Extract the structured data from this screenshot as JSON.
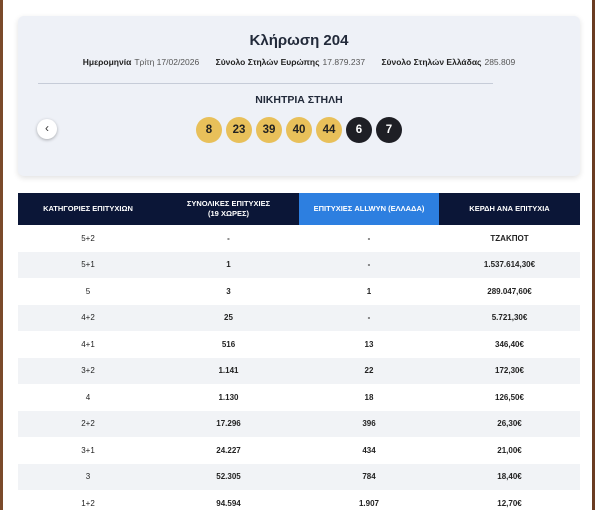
{
  "draw": {
    "title": "Κλήρωση 204",
    "date_label": "Ημερομηνία",
    "date_value": "Τρίτη 17/02/2026",
    "europe_label": "Σύνολο Στηλών Ευρώπης",
    "europe_value": "17.879.237",
    "greece_label": "Σύνολο Στηλών Ελλάδας",
    "greece_value": "285.809",
    "winning_label": "ΝΙΚΗΤΡΙΑ ΣΤΗΛΗ",
    "numbers": [
      "8",
      "23",
      "39",
      "40",
      "44"
    ],
    "stars": [
      "6",
      "7"
    ],
    "prev_icon": "chevron-left-icon",
    "colors": {
      "ball": "#e8c05a",
      "star": "#1e1f25",
      "header": "#0b1637",
      "header_highlight": "#2d7fe0"
    }
  },
  "table": {
    "headers": {
      "category": "ΚΑΤΗΓΟΡΙΕΣ ΕΠΙΤΥΧΙΩΝ",
      "total_line1": "ΣΥΝΟΛΙΚΕΣ ΕΠΙΤΥΧΙΕΣ",
      "total_line2": "(19 ΧΩΡΕΣ)",
      "allwyn": "ΕΠΙΤΥΧΙΕΣ ALLWYN (ΕΛΛΑΔΑ)",
      "prize": "ΚΕΡΔΗ ΑΝΑ ΕΠΙΤΥΧΙΑ"
    },
    "rows": [
      {
        "cat": "5+2",
        "total": "-",
        "allwyn": "-",
        "prize": "ΤΖΑΚΠΟΤ"
      },
      {
        "cat": "5+1",
        "total": "1",
        "allwyn": "-",
        "prize": "1.537.614,30€"
      },
      {
        "cat": "5",
        "total": "3",
        "allwyn": "1",
        "prize": "289.047,60€"
      },
      {
        "cat": "4+2",
        "total": "25",
        "allwyn": "-",
        "prize": "5.721,30€"
      },
      {
        "cat": "4+1",
        "total": "516",
        "allwyn": "13",
        "prize": "346,40€"
      },
      {
        "cat": "3+2",
        "total": "1.141",
        "allwyn": "22",
        "prize": "172,30€"
      },
      {
        "cat": "4",
        "total": "1.130",
        "allwyn": "18",
        "prize": "126,50€"
      },
      {
        "cat": "2+2",
        "total": "17.296",
        "allwyn": "396",
        "prize": "26,30€"
      },
      {
        "cat": "3+1",
        "total": "24.227",
        "allwyn": "434",
        "prize": "21,00€"
      },
      {
        "cat": "3",
        "total": "52.305",
        "allwyn": "784",
        "prize": "18,40€"
      },
      {
        "cat": "1+2",
        "total": "94.594",
        "allwyn": "1.907",
        "prize": "12,70€"
      }
    ]
  }
}
